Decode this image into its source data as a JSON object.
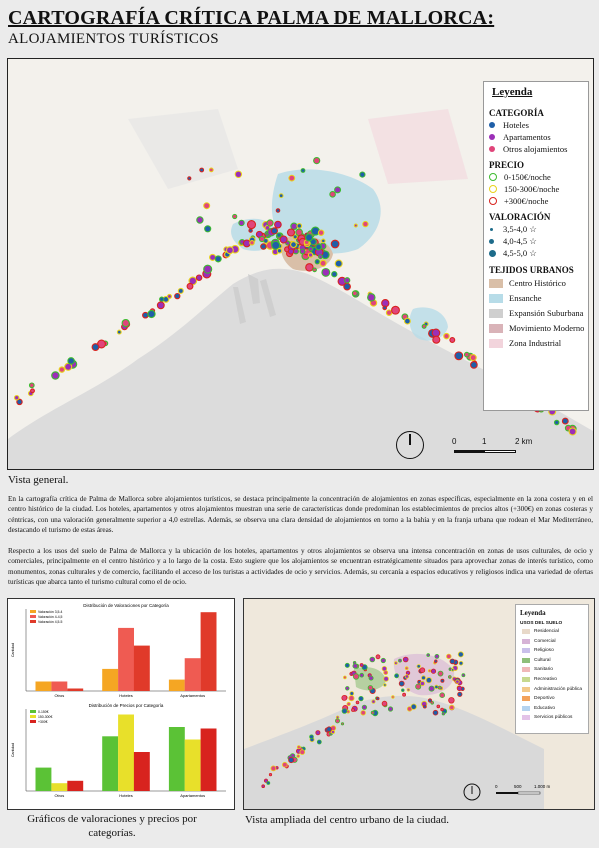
{
  "title": {
    "main": "CARTOGRAFÍA CRÍTICA PALMA DE MALLORCA:",
    "subtitle": "ALOJAMIENTOS TURÍSTICOS"
  },
  "legend": {
    "title": "Leyenda",
    "categoria_title": "CATEGORÍA",
    "categoria": [
      {
        "label": "Hoteles",
        "color": "#1f5fa8"
      },
      {
        "label": "Apartamentos",
        "color": "#9b2fb7"
      },
      {
        "label": "Otros alojamientos",
        "color": "#e0457a"
      }
    ],
    "precio_title": "PRECIO",
    "precio": [
      {
        "label": "0-150€/noche",
        "color": "#3dbb2f"
      },
      {
        "label": "150-300€/noche",
        "color": "#e8d21b"
      },
      {
        "label": "+300€/noche",
        "color": "#d8231e"
      }
    ],
    "valoracion_title": "VALORACIÓN",
    "valoracion": [
      {
        "label": "3,5-4,0 ☆",
        "color": "#1d6b8a"
      },
      {
        "label": "4,0-4,5 ☆",
        "color": "#1d6b8a"
      },
      {
        "label": "4,5-5,0 ☆",
        "color": "#1d6b8a"
      }
    ],
    "tejidos_title": "TEJIDOS URBANOS",
    "tejidos": [
      {
        "label": "Centro Histórico",
        "color": "#d9bfa8"
      },
      {
        "label": "Ensanche",
        "color": "#b7dce8"
      },
      {
        "label": "Expansión Suburbana",
        "color": "#cfcfcf"
      },
      {
        "label": "Movimiento Moderno",
        "color": "#d9b3b8"
      },
      {
        "label": "Zona Industrial",
        "color": "#f2d4dc"
      }
    ]
  },
  "scalebar": {
    "t0": "0",
    "t1": "1",
    "t2": "2 km"
  },
  "caption_main": "Vista general.",
  "paragraphs": [
    "En la cartografía crítica de Palma de Mallorca sobre alojamientos turísticos, se destaca principalmente la concentración de alojamientos en zonas específicas, especialmente en la zona costera y en el centro histórico de la ciudad. Los hoteles, apartamentos y otros alojamientos muestran una serie de características donde predominan los establecimientos de precios altos (+300€) en zonas costeras y céntricas, con una valoración generalmente superior a 4,0 estrellas. Además, se observa una clara densidad de alojamientos en torno a la bahía y en la franja urbana que rodean el Mar Mediterráneo, destacando el turismo de estas áreas.",
    "Respecto a los usos del suelo de Palma de Mallorca y la ubicación de los hoteles, apartamentos y otros alojamientos se observa una intensa concentración en zonas de usos culturales, de ocio y comerciales, principalmente en el centro histórico y a lo largo de la costa. Esto sugiere que los alojamientos se encuentran estratégicamente situados para aprovechar zonas de interés turístico, como monumentos, zonas culturales y de comercio, facilitando el acceso de los turistas a actividades de ocio y servicios. Además, su cercanía a espacios educativos y religiosos indica una variedad de ofertas turísticas que abarca tanto el turismo cultural como el de ocio."
  ],
  "chart_data": [
    {
      "type": "bar",
      "title": "Distribución de Valoraciones por Categoría",
      "categories": [
        "Otros",
        "Hoteles",
        "Apartamentos"
      ],
      "series": [
        {
          "name": "Valoración 3,5-4",
          "color": "#f5a623",
          "values": [
            1.5,
            3.5,
            1.8
          ]
        },
        {
          "name": "Valoración 4-4,5",
          "color": "#ef5b52",
          "values": [
            1.5,
            10.0,
            5.2
          ]
        },
        {
          "name": "Valoración 4,5-5",
          "color": "#e03a2a",
          "values": [
            0.4,
            7.2,
            12.5
          ]
        }
      ],
      "ylabel": "Cantidad",
      "ylim": [
        0,
        13
      ]
    },
    {
      "type": "bar",
      "title": "Distribución de Precios por Categoría",
      "categories": [
        "Otros",
        "Hoteles",
        "Apartamentos"
      ],
      "series": [
        {
          "name": "0-150€",
          "color": "#5bc236",
          "values": [
            3.0,
            7.0,
            8.2
          ]
        },
        {
          "name": "150-300€",
          "color": "#e8e02a",
          "values": [
            1.0,
            9.8,
            6.6
          ]
        },
        {
          "name": "+300€",
          "color": "#d8231e",
          "values": [
            1.3,
            5.0,
            8.0
          ]
        }
      ],
      "ylabel": "Cantidad",
      "ylim": [
        0,
        10.5
      ]
    }
  ],
  "zoom_legend": {
    "title": "Leyenda",
    "sub": "USOS DEL SUELO",
    "items": [
      {
        "label": "Residencial",
        "color": "#e8d9c9"
      },
      {
        "label": "Comercial",
        "color": "#d6b3d6"
      },
      {
        "label": "Religioso",
        "color": "#c9c0ea"
      },
      {
        "label": "Cultural",
        "color": "#8fbf7a"
      },
      {
        "label": "Sanitario",
        "color": "#f0b8b8"
      },
      {
        "label": "Recreativo",
        "color": "#c7d98f"
      },
      {
        "label": "Administración pública",
        "color": "#f3c98a"
      },
      {
        "label": "Deportivo",
        "color": "#f3a25a"
      },
      {
        "label": "Educativo",
        "color": "#b5d3ef"
      },
      {
        "label": "Servicios públicos",
        "color": "#e3c3e8"
      }
    ]
  },
  "zoom_scalebar": {
    "t0": "0",
    "t1": "500",
    "t2": "1.000 m"
  },
  "caption_charts": "Gráficos de valoraciones y precios por categorías.",
  "caption_zoom": "Vista ampliada del centro urbano de la ciudad."
}
